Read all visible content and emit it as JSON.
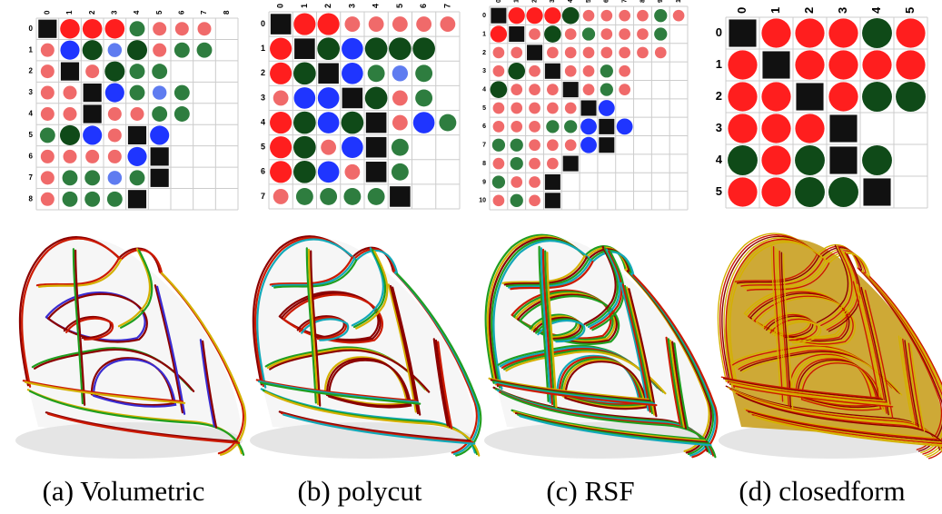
{
  "colors": {
    "positive_strong": "#ff1e1e",
    "positive_light": "#f06a6a",
    "negative_strong": "#0f4a18",
    "negative_medium": "#2e7d3f",
    "negative_light": "#7fb58a",
    "blue_strong": "#1f35ff",
    "blue_light": "#5f7cf0",
    "diagonal": "#111111",
    "grid": "#cccccc",
    "curve_dark": "#8b0000",
    "curve_red": "#cc1a00",
    "curve_yellow": "#d4b000",
    "curve_green": "#1f9e1f",
    "curve_cyan": "#12a8b8",
    "curve_blue": "#3a2bd0",
    "surface": "#cfcfcf"
  },
  "matrices": [
    {
      "labels": [
        "0",
        "1",
        "2",
        "3",
        "4",
        "5",
        "6",
        "7",
        "8"
      ],
      "rows": [
        "Dr2r2r2g1r1r1r1",
        "rDb2g2b1g2r1g1g1",
        "rb2Dr1g2g1g1",
        "rg2r1Db2g1b1g1",
        "rb1r1Dr1r1g1g1",
        "gg2g2b2r1Db2",
        "r1r1r1r1b2D",
        "r1g1g1b1g1D",
        "r1g1g1g1D"
      ]
    },
    {
      "labels": [
        "0",
        "1",
        "2",
        "3",
        "4",
        "5",
        "6",
        "7"
      ],
      "rows": [
        "Dr2r2r1r1r1r1r1",
        "r2Dg2b2g2g2g2",
        "r2g2Db2g1b1g1",
        "r1b2b2Dg2r1g1",
        "r2g2b2g2Dr1b2g1",
        "r2g2r1b2Dg1",
        "r2g2b2r1Dg1",
        "r1g1g1g1g1D"
      ]
    },
    {
      "labels": [
        "0",
        "1",
        "2",
        "3",
        "4",
        "5",
        "6",
        "7",
        "8",
        "9",
        "10"
      ],
      "rows": [
        "Dr2r2r2g2r1r1r1r1g1r1",
        "r2Dr1g2r1g1r1r1r1g1",
        "r1r1Dr1r1r1r1r1r1r1",
        "r1g2r1Dr1r1g1r1",
        "g2r1r1r1Dr1g1r1",
        "r1r1r1r1r1Db2",
        "r1r1r1g1g1b2Db2",
        "g1g1r1r1r1b2D",
        "r1g1r1r1D",
        "g1r1r1D",
        "r1g1r1D"
      ]
    },
    {
      "labels": [
        "0",
        "1",
        "2",
        "3",
        "4",
        "5"
      ],
      "rows": [
        "Dr2r2r2g2r2",
        "r2Dr2r2r2r2",
        "r2r2Dr2g2g2",
        "r2r2r2D",
        "g2r2g2Dg2",
        "r2r2g2g2D"
      ]
    }
  ],
  "captions": [
    "(a)  Volumetric",
    "(b)  polycut",
    "(c)  RSF",
    "(d)  closedform"
  ]
}
